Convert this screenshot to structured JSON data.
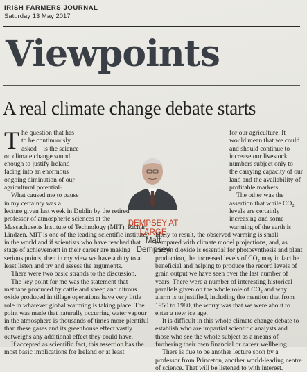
{
  "masthead": {
    "publication": "IRISH FARMERS JOURNAL",
    "date": "Saturday 13 May 2017"
  },
  "section_title": "Viewpoints",
  "headline": "A real climate change debate starts",
  "byline": {
    "line1": "DEMPSEY AT",
    "line2": "LARGE",
    "line3": "Matt",
    "line4": "Dempsey"
  },
  "article": {
    "dropcap": "T",
    "p1": "he question that has to be continuously asked – is the science on climate change sound enough to justify Ireland facing into an enormous ongoing diminution of our agricultural potential?",
    "p2": "What caused me to pause in my certainty was a lecture given last week in Dublin by the retired professor of atmospheric sciences at the Massachusetts Institute of Technology (MIT), Richard Lindzen. MIT is one of the leading scientific institutes in the world and if scientists who have reached that stage of achievement in their career are making serious points, then in my view we have a duty to at least listen and try and assess the arguments.",
    "p3": "There were two basic strands to the discussion.",
    "p4": "The key point for me was the statement that methane produced by cattle and sheep and nitrous oxide produced in tillage operations have very little role in whatever global warming is taking place. The point was made that naturally occurring water vapour in the atmosphere is thousands of times more plentiful than these gases and its greenhouse effect vastly outweighs any additional effect they could have.",
    "p5": "If accepted as scientific fact, this assertion has the most basic implications for Ireland or at least",
    "p6": "for our agriculture. It would mean that we could and should continue to increase our livestock numbers subject only to the carrying capacity of our land and the availability of profitable markets.",
    "p7a": "The other was the assertion that while CO",
    "p7b": " levels are certainly increasing and some warming of the earth is likely to result, the observed warming is small compared with climate model projections, and, as carbon dioxide is essential for photosynthesis and plant production, the increased levels of CO",
    "p7c": " may in fact be beneficial and helping to produce the record levels of grain output we have seen over the last number of years. There were a number of interesting historical parallels given on the whole role of CO",
    "p7d": " and why alarm is unjustified, including the mention that from 1950 to 1980, the worry was that we were about to enter a new ice age.",
    "sub2": "2",
    "p8": "It is difficult in this whole climate change debate to establish who are impartial scientific analysts and those who see the whole subject as a means of furthering their own financial or career wellbeing.",
    "p9": "There is due to be another lecture soon by a professor from Princeton, another world-leading centre of science. That will be listened to with interest."
  }
}
